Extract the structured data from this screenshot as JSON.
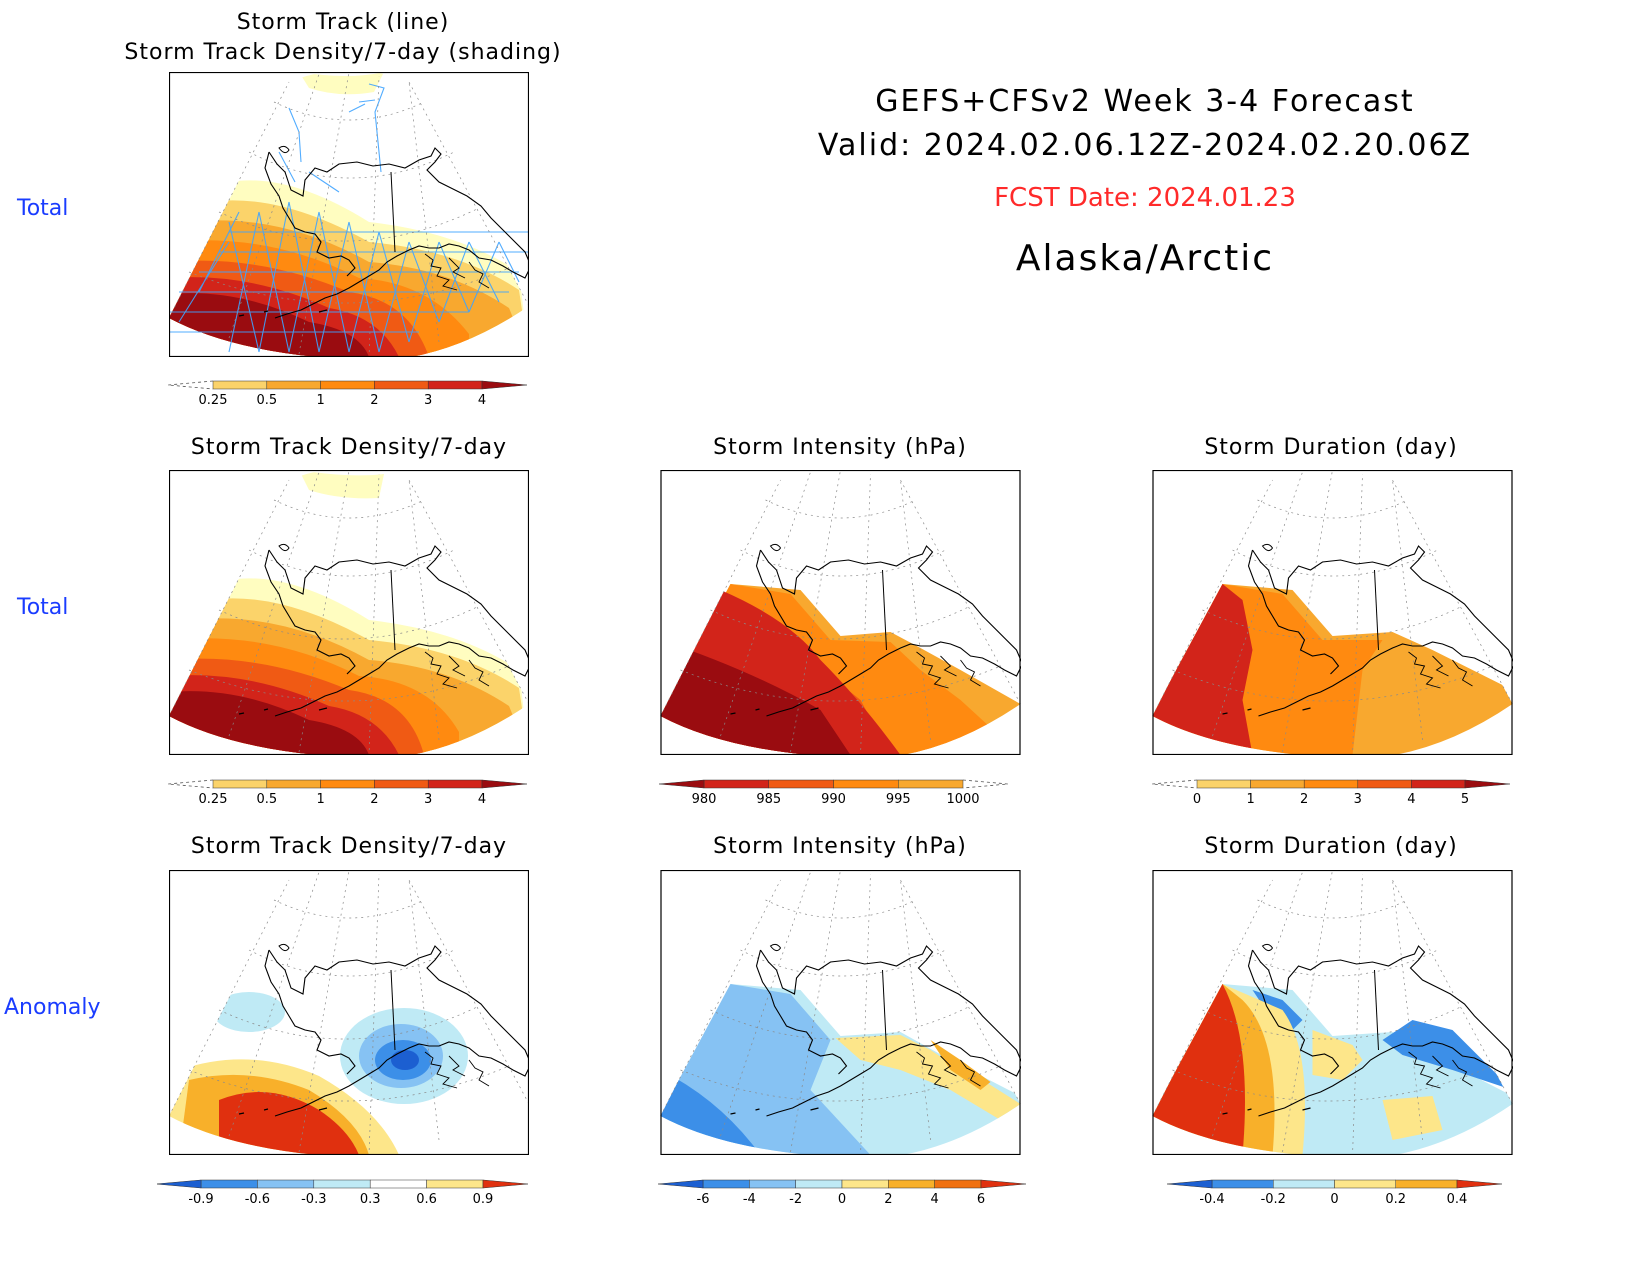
{
  "header": {
    "line1": "GEFS+CFSv2  Week  3-4  Forecast",
    "line2": "Valid:  2024.02.06.12Z-2024.02.20.06Z",
    "fcst": "FCST Date: 2024.01.23",
    "region": "Alaska/Arctic",
    "fcst_color": "#ff2a2a"
  },
  "row_labels": [
    "Total",
    "Total",
    "Anomaly"
  ],
  "panels": {
    "top": {
      "title1": "Storm Track (line)",
      "title2": "Storm Track Density/7-day (shading)"
    },
    "r2c1": {
      "title": "Storm Track Density/7-day"
    },
    "r2c2": {
      "title": "Storm Intensity (hPa)"
    },
    "r2c3": {
      "title": "Storm Duration (day)"
    },
    "r3c1": {
      "title": "Storm Track Density/7-day"
    },
    "r3c2": {
      "title": "Storm Intensity (hPa)"
    },
    "r3c3": {
      "title": "Storm Duration (day)"
    }
  },
  "colorbars": {
    "density": {
      "labels": [
        "0.25",
        "0.5",
        "1",
        "2",
        "3",
        "4"
      ],
      "colors": [
        "#fffdc0",
        "#fbd36a",
        "#f8a82f",
        "#ff8a10",
        "#f05a14",
        "#d2241a",
        "#9a0c10"
      ]
    },
    "intensity": {
      "labels": [
        "980",
        "985",
        "990",
        "995",
        "1000"
      ],
      "colors": [
        "#9a0c10",
        "#d2241a",
        "#f05a14",
        "#ff8a10",
        "#f8a82f",
        "#fffdc0"
      ]
    },
    "duration": {
      "labels": [
        "0",
        "1",
        "2",
        "3",
        "4",
        "5"
      ],
      "colors": [
        "#fffdc0",
        "#fbd36a",
        "#f8a82f",
        "#ff8a10",
        "#f05a14",
        "#d2241a",
        "#9a0c10"
      ]
    },
    "density_anom": {
      "labels": [
        "-0.9",
        "-0.6",
        "-0.3",
        "0.3",
        "0.6",
        "0.9"
      ],
      "colors": [
        "#1c5fd1",
        "#3c8fe8",
        "#86c2f3",
        "#bfeaf5",
        "#ffffff",
        "#fde68a",
        "#f8b02a",
        "#f07010",
        "#e0300f"
      ]
    },
    "intensity_anom": {
      "labels": [
        "-6",
        "-4",
        "-2",
        "0",
        "2",
        "4",
        "6"
      ],
      "colors": [
        "#1c5fd1",
        "#3c8fe8",
        "#86c2f3",
        "#bfeaf5",
        "#fde68a",
        "#f8b02a",
        "#f07010",
        "#e0300f"
      ]
    },
    "duration_anom": {
      "labels": [
        "-0.4",
        "-0.2",
        "0",
        "0.2",
        "0.4"
      ],
      "colors": [
        "#1c5fd1",
        "#3c8fe8",
        "#bfeaf5",
        "#fde68a",
        "#f8b02a",
        "#e0300f"
      ]
    }
  }
}
